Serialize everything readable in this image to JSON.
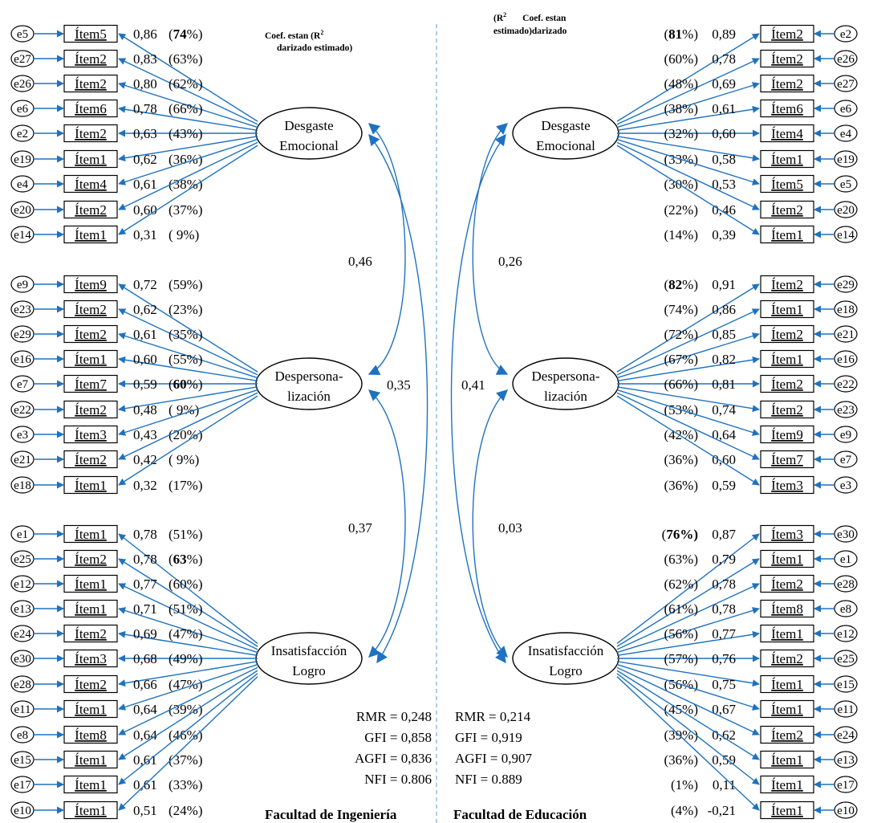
{
  "left": {
    "header": {
      "line1": "Coef. estan    (R",
      "sup": "2",
      "line2": "darizado   estimado)"
    },
    "latents": [
      {
        "line1": "Desgaste",
        "line2": "Emocional"
      },
      {
        "line1": "Despersona-",
        "line2": "lización"
      },
      {
        "line1": "Insatisfacción",
        "line2": "Logro"
      }
    ],
    "groups": [
      [
        {
          "e": "e5",
          "item": "Ítem5",
          "coef": "0,86",
          "r2": "74"
        },
        {
          "e": "e27",
          "item": "Ítem2",
          "coef": "0,83",
          "r2": "63%"
        },
        {
          "e": "e26",
          "item": "Ítem2",
          "coef": "0,80",
          "r2": "62%"
        },
        {
          "e": "e6",
          "item": "Ítem6",
          "coef": "0,78",
          "r2": "66%"
        },
        {
          "e": "e2",
          "item": "Ítem2",
          "coef": "0,63",
          "r2": "43%"
        },
        {
          "e": "e19",
          "item": "Ítem1",
          "coef": "0,62",
          "r2": "36%"
        },
        {
          "e": "e4",
          "item": "Ítem4",
          "coef": "0,61",
          "r2": "38%"
        },
        {
          "e": "e20",
          "item": "Ítem2",
          "coef": "0,60",
          "r2": "37%"
        },
        {
          "e": "e14",
          "item": "Ítem1",
          "coef": "0,31",
          "r2": " 9%"
        }
      ],
      [
        {
          "e": "e9",
          "item": "Ítem9",
          "coef": "0,72",
          "r2": "59%"
        },
        {
          "e": "e23",
          "item": "Ítem2",
          "coef": "0,62",
          "r2": "23%"
        },
        {
          "e": "e29",
          "item": "Ítem2",
          "coef": "0,61",
          "r2": "35%"
        },
        {
          "e": "e16",
          "item": "Ítem1",
          "coef": "0,60",
          "r2": "55%"
        },
        {
          "e": "e7",
          "item": "Ítem7",
          "coef": "0,59",
          "r2": "60"
        },
        {
          "e": "e22",
          "item": "Ítem2",
          "coef": "0,48",
          "r2": " 9%"
        },
        {
          "e": "e3",
          "item": "Ítem3",
          "coef": "0,43",
          "r2": "20%"
        },
        {
          "e": "e21",
          "item": "Ítem2",
          "coef": "0,42",
          "r2": " 9%"
        },
        {
          "e": "e18",
          "item": "Ítem1",
          "coef": "0,32",
          "r2": "17%"
        }
      ],
      [
        {
          "e": "e1",
          "item": "Ítem1",
          "coef": "0,78",
          "r2": "51%"
        },
        {
          "e": "e25",
          "item": "Ítem2",
          "coef": "0,78",
          "r2": "63"
        },
        {
          "e": "e12",
          "item": "Ítem1",
          "coef": "0,77",
          "r2": "60%"
        },
        {
          "e": "e13",
          "item": "Ítem1",
          "coef": "0,71",
          "r2": "51%"
        },
        {
          "e": "e24",
          "item": "Ítem2",
          "coef": "0,69",
          "r2": "47%"
        },
        {
          "e": "e30",
          "item": "Ítem3",
          "coef": "0,68",
          "r2": "49%"
        },
        {
          "e": "e28",
          "item": "Ítem2",
          "coef": "0,66",
          "r2": "47%"
        },
        {
          "e": "e11",
          "item": "Ítem1",
          "coef": "0,64",
          "r2": "39%"
        },
        {
          "e": "e8",
          "item": "Ítem8",
          "coef": "0,64",
          "r2": "46%"
        },
        {
          "e": "e15",
          "item": "Ítem1",
          "coef": "0,61",
          "r2": "37%"
        },
        {
          "e": "e17",
          "item": "Ítem1",
          "coef": "0,61",
          "r2": "33%"
        },
        {
          "e": "e10",
          "item": "Ítem1",
          "coef": "0,51",
          "r2": "24%"
        }
      ]
    ],
    "correlations": [
      "0,46",
      "0,35",
      "0,37"
    ],
    "fit": [
      "RMR = 0,248",
      "GFI = 0,858",
      "AGFI = 0,836",
      "NFI = 0.806"
    ],
    "faculty": "Facultad de Ingeniería"
  },
  "right": {
    "header": {
      "line1": "(R",
      "sup": "2",
      "line1b": "Coef. estan",
      "line2": "estimado)darizado"
    },
    "latents": [
      {
        "line1": "Desgaste",
        "line2": "Emocional"
      },
      {
        "line1": "Despersona-",
        "line2": "lización"
      },
      {
        "line1": "Insatisfacción",
        "line2": "Logro"
      }
    ],
    "groups": [
      [
        {
          "e": "e2",
          "item": "Ítem2",
          "coef": "0,89",
          "r2": "81"
        },
        {
          "e": "e26",
          "item": "Ítem2",
          "coef": "0,78",
          "r2": "60%"
        },
        {
          "e": "e27",
          "item": "Ítem2",
          "coef": "0,69",
          "r2": "48%"
        },
        {
          "e": "e6",
          "item": "Ítem6",
          "coef": "0,61",
          "r2": "38%"
        },
        {
          "e": "e4",
          "item": "Ítem4",
          "coef": "0,60",
          "r2": "32%"
        },
        {
          "e": "e19",
          "item": "Ítem1",
          "coef": "0,58",
          "r2": "33%"
        },
        {
          "e": "e5",
          "item": "Ítem5",
          "coef": "0,53",
          "r2": "30%"
        },
        {
          "e": "e20",
          "item": "Ítem2",
          "coef": "0,46",
          "r2": "22%"
        },
        {
          "e": "e14",
          "item": "Ítem1",
          "coef": "0,39",
          "r2": "14%"
        }
      ],
      [
        {
          "e": "e29",
          "item": "Ítem2",
          "coef": "0,91",
          "r2": "82"
        },
        {
          "e": "e18",
          "item": "Ítem1",
          "coef": "0,86",
          "r2": "74%"
        },
        {
          "e": "e21",
          "item": "Ítem2",
          "coef": "0,85",
          "r2": "72%"
        },
        {
          "e": "e16",
          "item": "Ítem1",
          "coef": "0,82",
          "r2": "67%"
        },
        {
          "e": "e22",
          "item": "Ítem2",
          "coef": "0,81",
          "r2": "66%"
        },
        {
          "e": "e23",
          "item": "Ítem2",
          "coef": "0,74",
          "r2": "53%"
        },
        {
          "e": "e9",
          "item": "Ítem9",
          "coef": "0,64",
          "r2": "42%"
        },
        {
          "e": "e7",
          "item": "Ítem7",
          "coef": "0,60",
          "r2": "36%"
        },
        {
          "e": "e3",
          "item": "Ítem3",
          "coef": "0,59",
          "r2": "36%"
        }
      ],
      [
        {
          "e": "e30",
          "item": "Ítem3",
          "coef": "0,87",
          "r2": "76%"
        },
        {
          "e": "e1",
          "item": "Ítem1",
          "coef": "0,79",
          "r2": "63%"
        },
        {
          "e": "e28",
          "item": "Ítem2",
          "coef": "0,78",
          "r2": "62%"
        },
        {
          "e": "e8",
          "item": "Ítem8",
          "coef": "0,78",
          "r2": "61%"
        },
        {
          "e": "e12",
          "item": "Ítem1",
          "coef": "0,77",
          "r2": "56%"
        },
        {
          "e": "e25",
          "item": "Ítem2",
          "coef": "0,76",
          "r2": "57%"
        },
        {
          "e": "e15",
          "item": "Ítem1",
          "coef": "0,75",
          "r2": "56%"
        },
        {
          "e": "e11",
          "item": "Ítem1",
          "coef": "0,67",
          "r2": "45%"
        },
        {
          "e": "e24",
          "item": "Ítem2",
          "coef": "0,62",
          "r2": "39%"
        },
        {
          "e": "e13",
          "item": "Ítem1",
          "coef": "0,59",
          "r2": "36%"
        },
        {
          "e": "e17",
          "item": "Ítem1",
          "coef": "0,11",
          "r2": "1%"
        },
        {
          "e": "e10",
          "item": "Ítem1",
          "coef": "-0,21",
          "r2": "4%"
        }
      ]
    ],
    "correlations": [
      "0,26",
      "0,41",
      "0,03"
    ],
    "fit": [
      "RMR = 0,214",
      "GFI = 0,919",
      "AGFI = 0,907",
      "NFI = 0.889"
    ],
    "faculty": "Facultad de Educación"
  },
  "colors": {
    "arrow": "#1f72c0",
    "divider": "#5b9bd5"
  }
}
